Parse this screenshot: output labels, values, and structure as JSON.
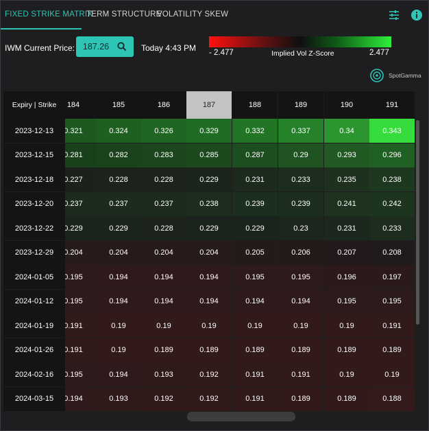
{
  "tabs": [
    {
      "label": "FIXED STRIKE MATRIX",
      "active": true
    },
    {
      "label": "TERM STRUCTURE",
      "active": false
    },
    {
      "label": "VOLATILITY SKEW",
      "active": false
    }
  ],
  "icons": {
    "settings": "sliders-icon",
    "info": "info-icon",
    "search": "search-icon",
    "brand": "spotgamma-logo-icon"
  },
  "price": {
    "label": "IWM Current Price:",
    "value": "187.26"
  },
  "timestamp": "Today 4:43 PM",
  "legend": {
    "min": "- 2.477",
    "max": "2.477",
    "title": "Implied Vol Z-Score"
  },
  "brand": "SpotGamma",
  "colors": {
    "accent": "#2ec4b6",
    "negative": "#ff1010",
    "positive": "#2ef03a"
  },
  "matrix": {
    "corner": "Expiry | Strike",
    "selected_strike": "187",
    "strikes": [
      "184",
      "185",
      "186",
      "187",
      "188",
      "189",
      "190",
      "191"
    ],
    "rows": [
      {
        "expiry": "2023-12-13",
        "values": [
          "0.321",
          "0.324",
          "0.326",
          "0.329",
          "0.332",
          "0.337",
          "0.34",
          "0.343"
        ]
      },
      {
        "expiry": "2023-12-15",
        "values": [
          "0.281",
          "0.282",
          "0.283",
          "0.285",
          "0.287",
          "0.29",
          "0.293",
          "0.296"
        ]
      },
      {
        "expiry": "2023-12-18",
        "values": [
          "0.227",
          "0.228",
          "0.228",
          "0.229",
          "0.231",
          "0.233",
          "0.235",
          "0.238"
        ]
      },
      {
        "expiry": "2023-12-20",
        "values": [
          "0.237",
          "0.237",
          "0.237",
          "0.238",
          "0.239",
          "0.239",
          "0.241",
          "0.242"
        ]
      },
      {
        "expiry": "2023-12-22",
        "values": [
          "0.229",
          "0.229",
          "0.228",
          "0.229",
          "0.229",
          "0.23",
          "0.231",
          "0.233"
        ]
      },
      {
        "expiry": "2023-12-29",
        "values": [
          "0.204",
          "0.204",
          "0.204",
          "0.204",
          "0.205",
          "0.206",
          "0.207",
          "0.208"
        ]
      },
      {
        "expiry": "2024-01-05",
        "values": [
          "0.195",
          "0.194",
          "0.194",
          "0.194",
          "0.195",
          "0.195",
          "0.196",
          "0.197"
        ]
      },
      {
        "expiry": "2024-01-12",
        "values": [
          "0.195",
          "0.194",
          "0.194",
          "0.194",
          "0.194",
          "0.194",
          "0.195",
          "0.195"
        ]
      },
      {
        "expiry": "2024-01-19",
        "values": [
          "0.191",
          "0.19",
          "0.19",
          "0.19",
          "0.19",
          "0.19",
          "0.19",
          "0.191"
        ]
      },
      {
        "expiry": "2024-01-26",
        "values": [
          "0.191",
          "0.19",
          "0.189",
          "0.189",
          "0.189",
          "0.189",
          "0.189",
          "0.189"
        ]
      },
      {
        "expiry": "2024-02-16",
        "values": [
          "0.195",
          "0.194",
          "0.193",
          "0.192",
          "0.191",
          "0.191",
          "0.19",
          "0.19"
        ]
      },
      {
        "expiry": "2024-03-15",
        "values": [
          "0.194",
          "0.193",
          "0.192",
          "0.192",
          "0.191",
          "0.189",
          "0.189",
          "0.188"
        ]
      }
    ],
    "cell_colors": [
      [
        "#1e5a20",
        "#1f6021",
        "#206522",
        "#216c24",
        "#237526",
        "#26822a",
        "#2b962f",
        "#35dc3c"
      ],
      [
        "#1a3f1b",
        "#1a421c",
        "#1b451d",
        "#1c491e",
        "#1d4e20",
        "#1f5321",
        "#205922",
        "#216024"
      ],
      [
        "#1b221b",
        "#1b231b",
        "#1b231b",
        "#1b251c",
        "#1c291d",
        "#1c2d1d",
        "#1d311e",
        "#1e371f"
      ],
      [
        "#1c2b1d",
        "#1c2b1d",
        "#1c2b1d",
        "#1c2d1d",
        "#1c2f1e",
        "#1c2f1e",
        "#1d331f",
        "#1d351f"
      ],
      [
        "#1b241c",
        "#1b241c",
        "#1b231b",
        "#1b241c",
        "#1b241c",
        "#1c261c",
        "#1c281d",
        "#1c2c1d"
      ],
      [
        "#261a1a",
        "#261a1a",
        "#261a1a",
        "#261a1a",
        "#241a1a",
        "#231a1a",
        "#221a1a",
        "#201b1b"
      ],
      [
        "#2d1a1a",
        "#2e1a1a",
        "#2e1a1a",
        "#2e1a1a",
        "#2d1a1a",
        "#2d1a1a",
        "#2c1a1a",
        "#2b1a1a"
      ],
      [
        "#2d1a1a",
        "#2e1a1a",
        "#2e1a1a",
        "#2e1a1a",
        "#2e1a1a",
        "#2e1a1a",
        "#2d1a1a",
        "#2d1a1a"
      ],
      [
        "#311a1a",
        "#321a1a",
        "#321a1a",
        "#321a1a",
        "#321a1a",
        "#321a1a",
        "#321a1a",
        "#311a1a"
      ],
      [
        "#311a1a",
        "#321a1a",
        "#331a1a",
        "#331a1a",
        "#331a1a",
        "#331a1a",
        "#331a1a",
        "#331a1a"
      ],
      [
        "#2d1a1a",
        "#2e1a1a",
        "#2f1a1a",
        "#301a1a",
        "#311a1a",
        "#311a1a",
        "#321a1a",
        "#321a1a"
      ],
      [
        "#2e1a1a",
        "#2f1a1a",
        "#301a1a",
        "#301a1a",
        "#311a1a",
        "#331a1a",
        "#331a1a",
        "#341a1a"
      ]
    ]
  }
}
